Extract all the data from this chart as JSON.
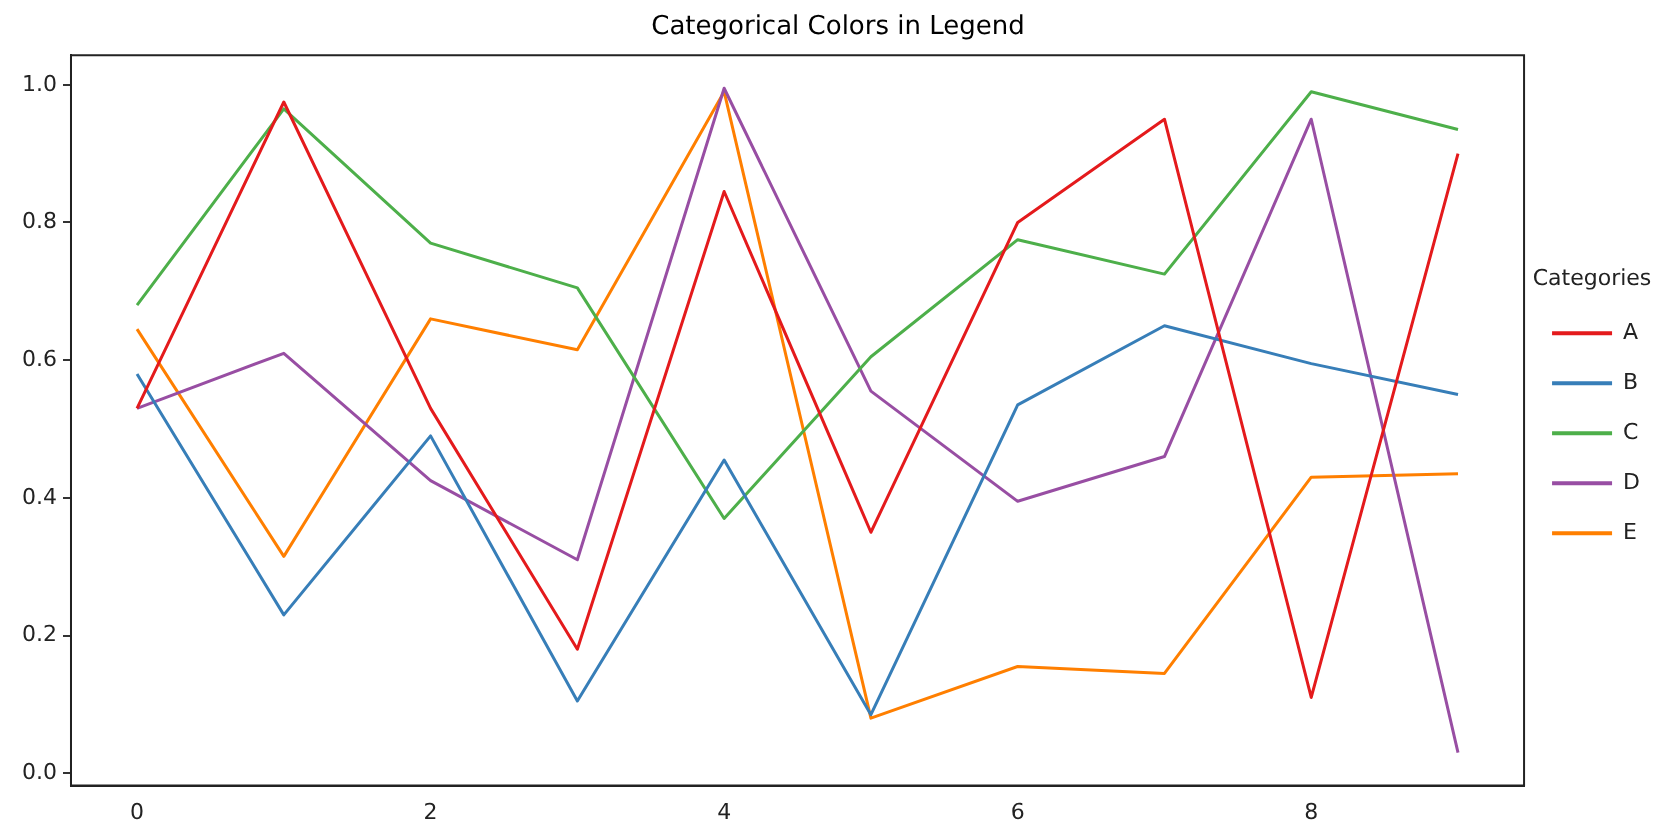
{
  "chart_data": {
    "type": "line",
    "title": "Categorical Colors in Legend",
    "legend_title": "Categories",
    "x": [
      0,
      1,
      2,
      3,
      4,
      5,
      6,
      7,
      8,
      9
    ],
    "series": [
      {
        "name": "A",
        "color": "#e41a1c",
        "values": [
          0.53,
          0.975,
          0.53,
          0.18,
          0.845,
          0.35,
          0.8,
          0.95,
          0.11,
          0.9
        ]
      },
      {
        "name": "B",
        "color": "#377eb8",
        "values": [
          0.58,
          0.23,
          0.49,
          0.105,
          0.455,
          0.085,
          0.535,
          0.65,
          0.595,
          0.55
        ]
      },
      {
        "name": "C",
        "color": "#4daf4a",
        "values": [
          0.68,
          0.965,
          0.77,
          0.705,
          0.37,
          0.605,
          0.775,
          0.725,
          0.99,
          0.935
        ]
      },
      {
        "name": "D",
        "color": "#984ea3",
        "values": [
          0.53,
          0.61,
          0.425,
          0.31,
          0.995,
          0.555,
          0.395,
          0.46,
          0.95,
          0.03
        ]
      },
      {
        "name": "E",
        "color": "#ff7f00",
        "values": [
          0.645,
          0.315,
          0.66,
          0.615,
          0.99,
          0.08,
          0.155,
          0.145,
          0.43,
          0.435
        ]
      }
    ],
    "xlim": [
      -0.45,
      9.45
    ],
    "xticks": [
      0,
      2,
      4,
      6,
      8
    ],
    "ylim": [
      -0.018,
      1.043
    ],
    "yticks": [
      {
        "value": 0,
        "label": "0.0"
      },
      {
        "value": 0.2,
        "label": "0.2"
      },
      {
        "value": 0.4,
        "label": "0.4"
      },
      {
        "value": 0.6,
        "label": "0.6"
      },
      {
        "value": 0.8,
        "label": "0.8"
      },
      {
        "value": 1,
        "label": "1.0"
      }
    ],
    "grid": false,
    "legend": "right",
    "marker": "none",
    "line_style": "solid"
  }
}
